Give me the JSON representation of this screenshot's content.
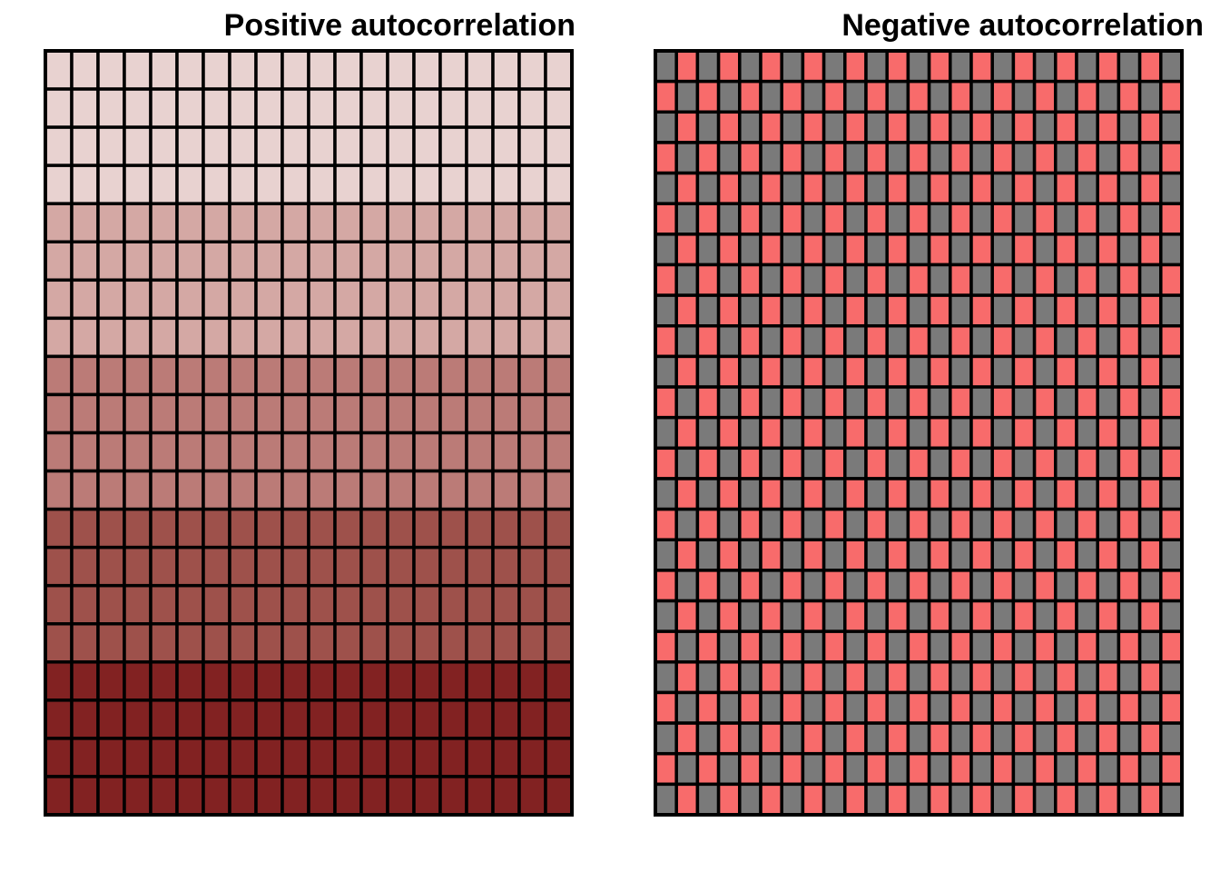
{
  "panels": [
    {
      "title": "Positive autocorrelation",
      "rows": 20,
      "cols": 20,
      "pattern": "row-bands",
      "band_height_rows": 4,
      "colors": [
        "#e8d2d0",
        "#d4a8a4",
        "#bb7b77",
        "#9e514b",
        "#822222"
      ]
    },
    {
      "title": "Negative autocorrelation",
      "rows": 25,
      "cols": 25,
      "pattern": "checkerboard",
      "colors": [
        "#7a7a7a",
        "#f86b6b"
      ]
    }
  ]
}
